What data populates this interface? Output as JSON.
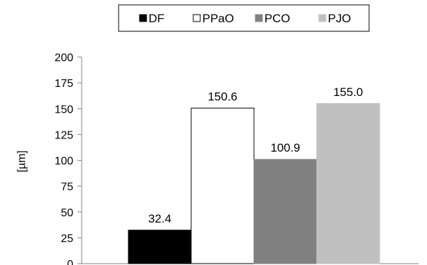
{
  "chart_data": {
    "type": "bar",
    "categories": [
      "DF",
      "PPaO",
      "PCO",
      "PJO"
    ],
    "values": [
      32.4,
      150.6,
      100.9,
      155.0
    ],
    "value_labels": [
      "32.4",
      "150.6",
      "100.9",
      "155.0"
    ],
    "colors": [
      "#000000",
      "#ffffff",
      "#808080",
      "#c0c0c0"
    ],
    "ylabel": "[µm]",
    "ylim": [
      0,
      200
    ],
    "yticks": [
      0,
      25,
      50,
      75,
      100,
      125,
      150,
      175,
      200
    ],
    "grid": false,
    "legend": {
      "position": "top-center",
      "entries": [
        "DF",
        "PPaO",
        "PCO",
        "PJO"
      ]
    }
  }
}
